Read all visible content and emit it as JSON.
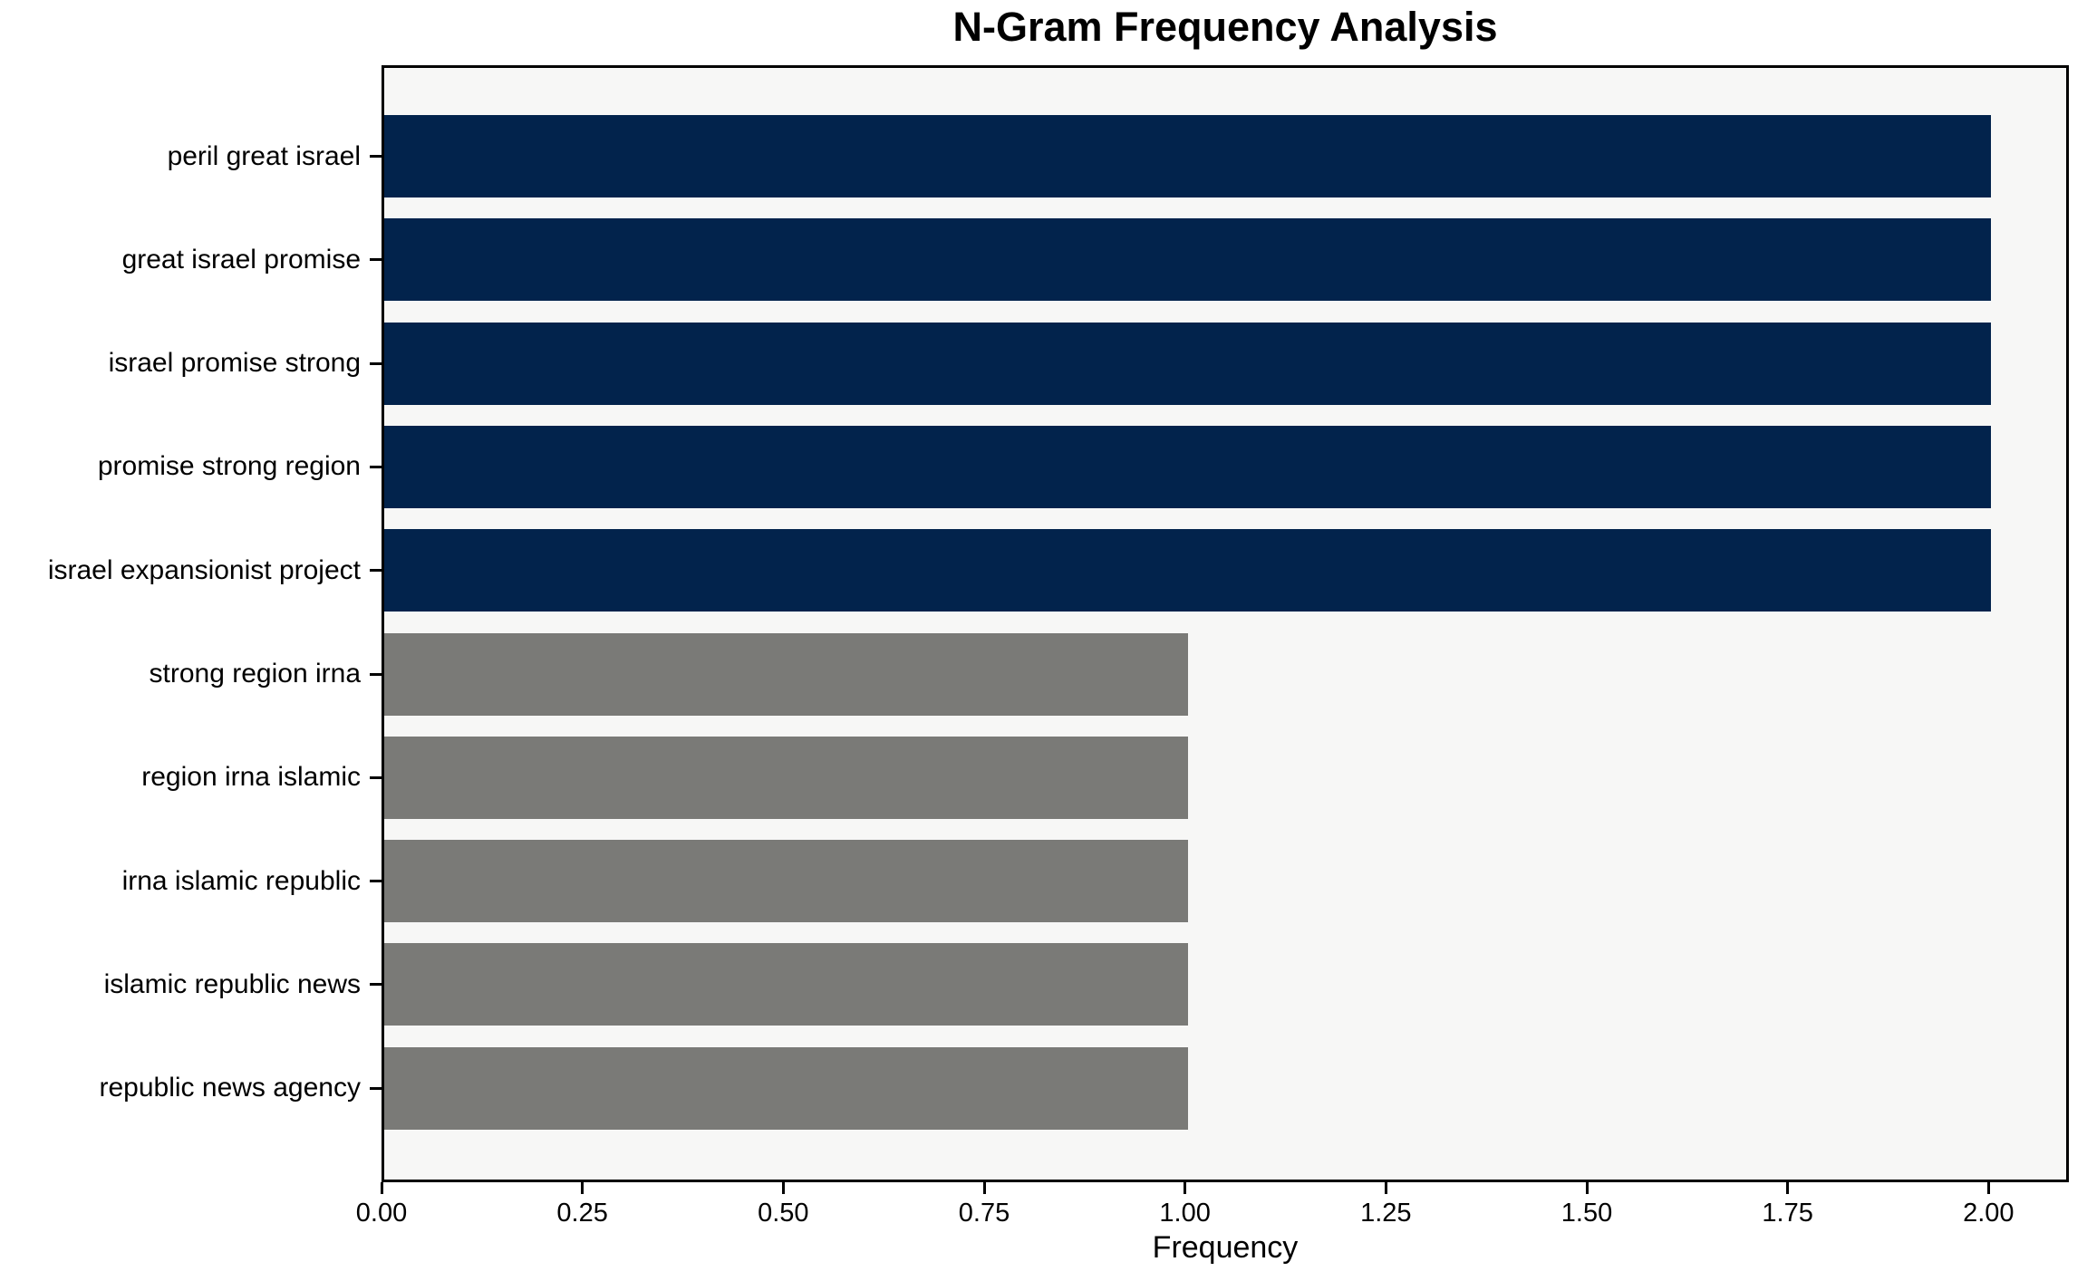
{
  "chart_data": {
    "type": "bar",
    "orientation": "horizontal",
    "title": "N-Gram Frequency Analysis",
    "xlabel": "Frequency",
    "ylabel": "",
    "categories": [
      "peril great israel",
      "great israel promise",
      "israel promise strong",
      "promise strong region",
      "israel expansionist project",
      "strong region irna",
      "region irna islamic",
      "irna islamic republic",
      "islamic republic news",
      "republic news agency"
    ],
    "values": [
      2,
      2,
      2,
      2,
      2,
      1,
      1,
      1,
      1,
      1
    ],
    "bar_colors": [
      "#02234c",
      "#02234c",
      "#02234c",
      "#02234c",
      "#02234c",
      "#7a7a77",
      "#7a7a77",
      "#7a7a77",
      "#7a7a77",
      "#7a7a77"
    ],
    "xlim": [
      0,
      2.1
    ],
    "xtick_labels": [
      "0.00",
      "0.25",
      "0.50",
      "0.75",
      "1.00",
      "1.25",
      "1.50",
      "1.75",
      "2.00"
    ],
    "xtick_values": [
      0,
      0.25,
      0.5,
      0.75,
      1.0,
      1.25,
      1.5,
      1.75,
      2.0
    ],
    "grid": "off",
    "legend": "none",
    "colors": {
      "high_frequency_bar": "#02234c",
      "low_frequency_bar": "#7a7a77",
      "plot_background": "#f7f7f6",
      "figure_background": "#ffffff",
      "spine": "#000000",
      "text": "#000000"
    }
  }
}
